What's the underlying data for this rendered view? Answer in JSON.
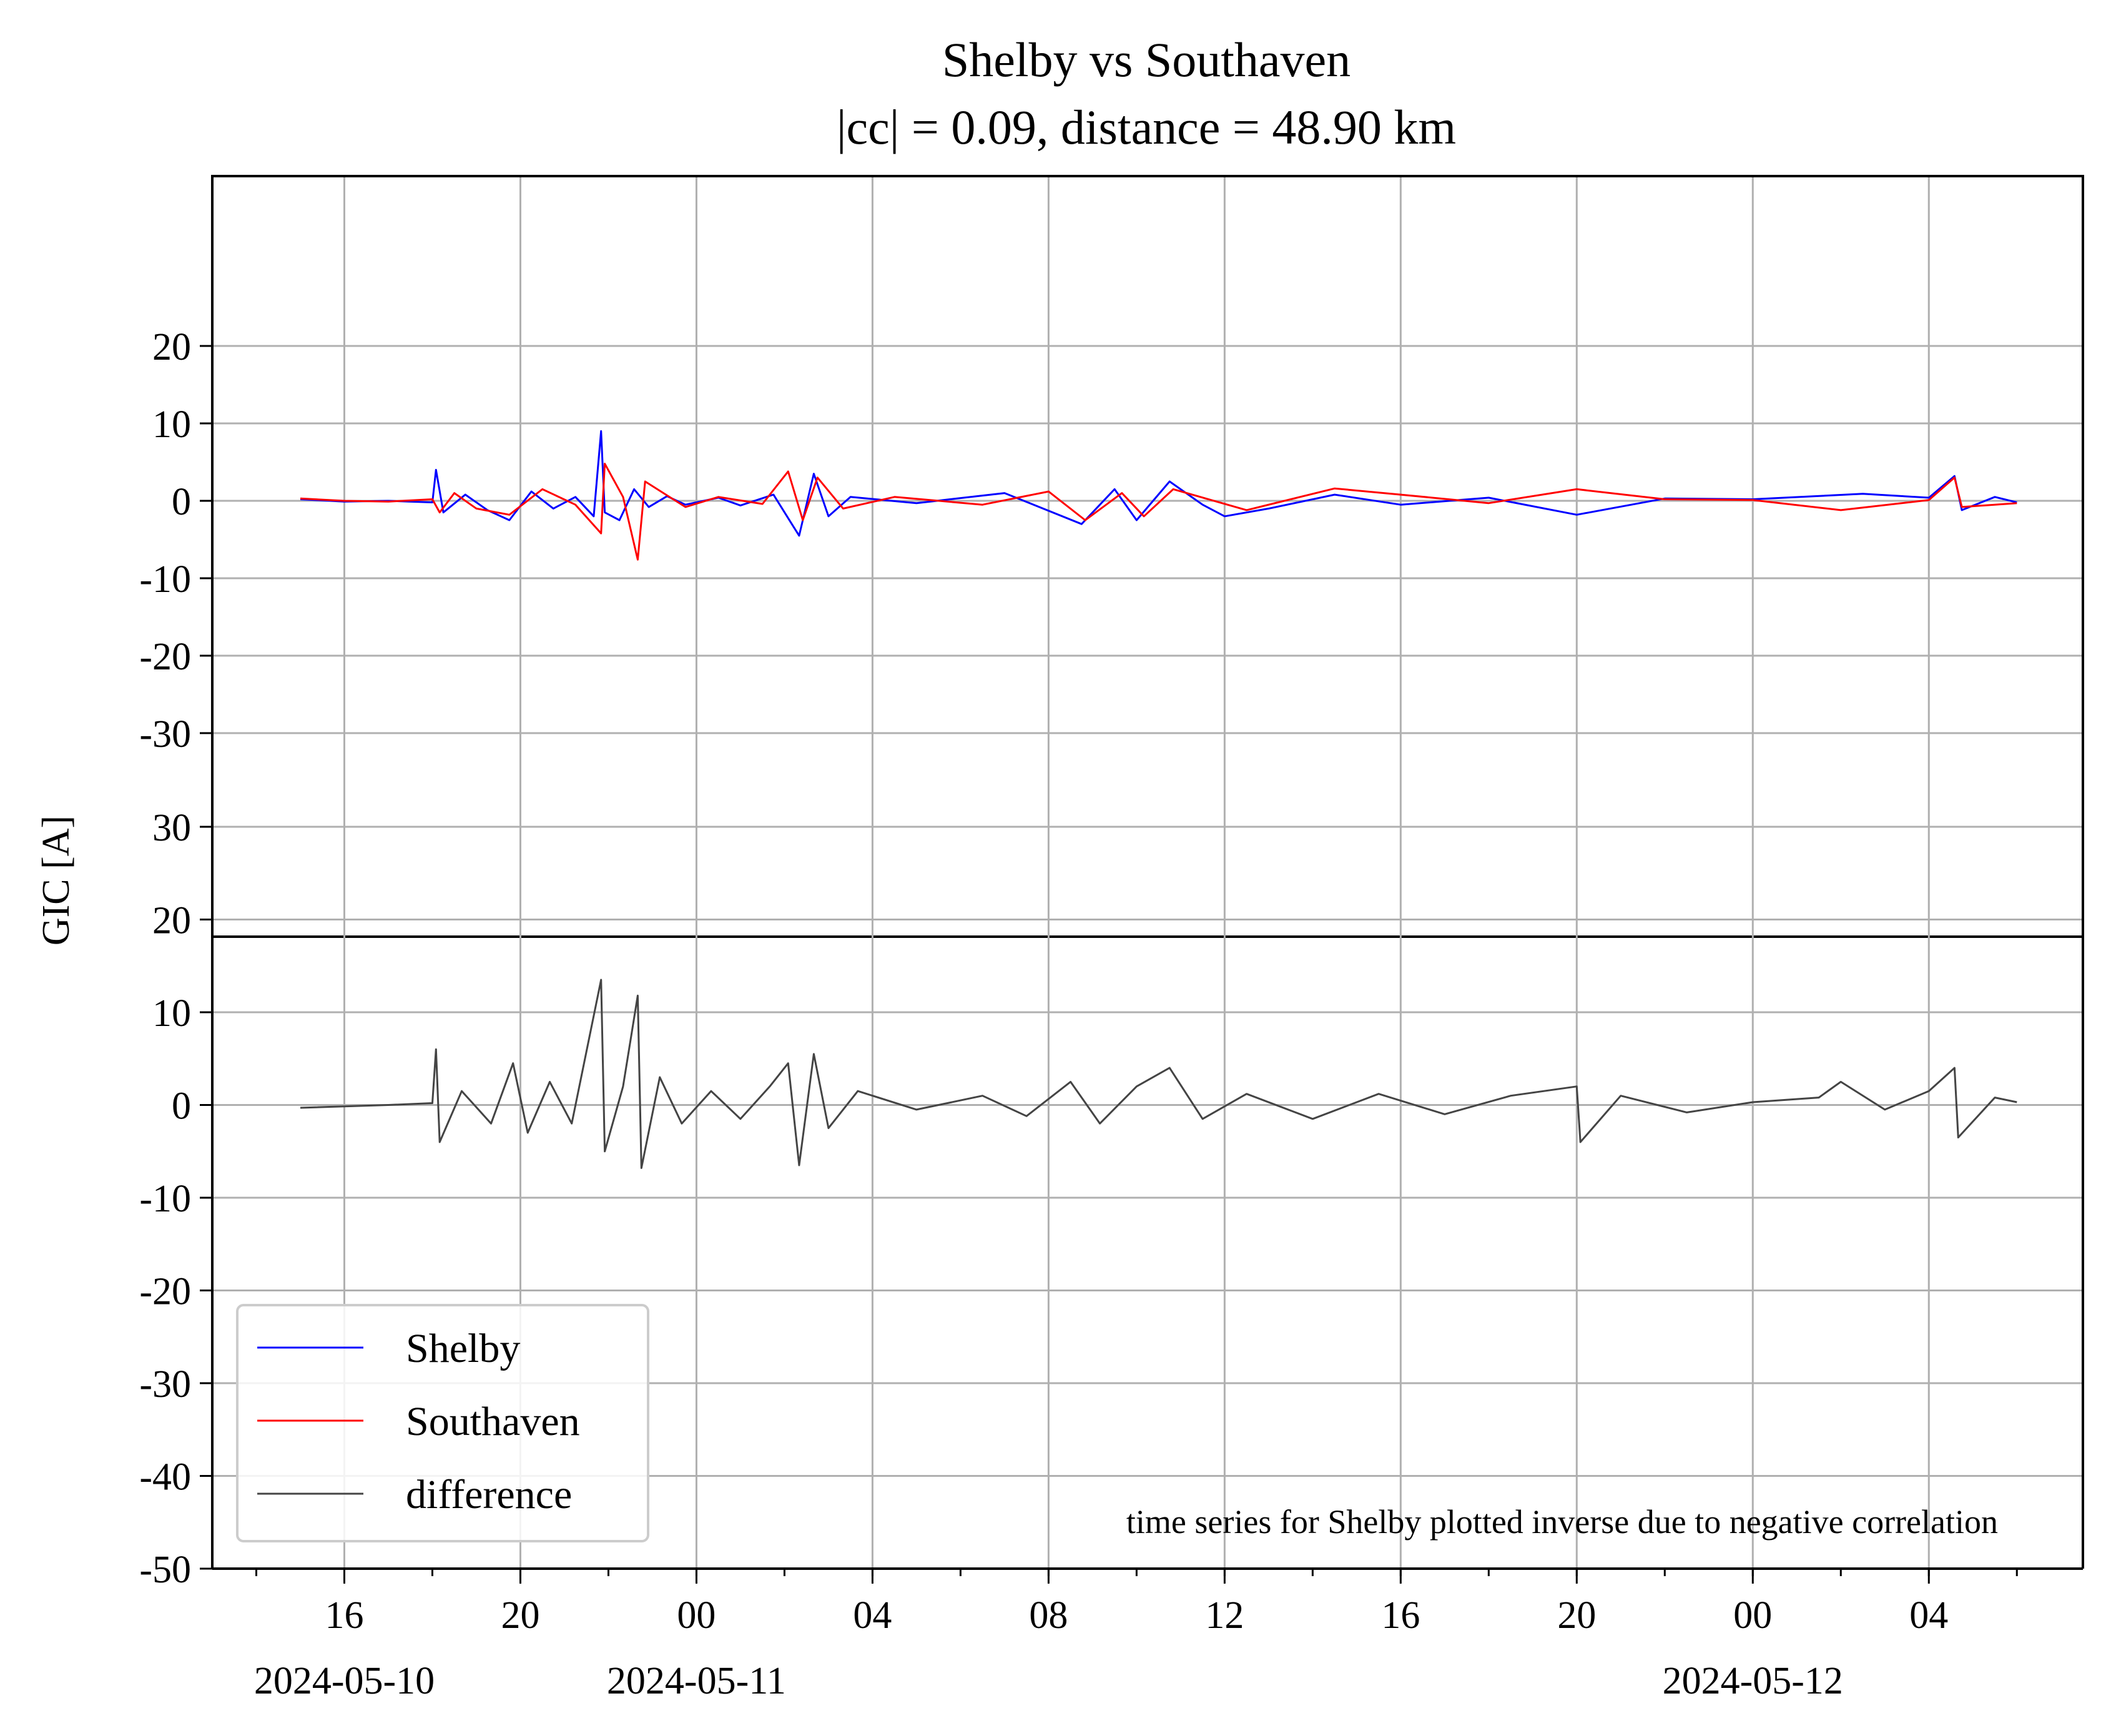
{
  "chart_data": {
    "type": "line",
    "title": "Shelby vs Southaven",
    "subtitle": "|cc| = 0.09, distance = 48.90 km",
    "ylabel": "GIC [A]",
    "note": "time series for Shelby plotted inverse due to negative correlation",
    "legend": {
      "position": "lower-left",
      "entries": [
        "Shelby",
        "Southaven",
        "difference"
      ]
    },
    "colors": {
      "Shelby": "#0000ff",
      "Southaven": "#ff0000",
      "difference": "#444444",
      "grid": "#b0b0b0"
    },
    "grid": true,
    "x_range": [
      "2024-05-10T13:00",
      "2024-05-12T07:30"
    ],
    "x_ticks": [
      {
        "t": "2024-05-10T16:00",
        "label": "16",
        "date": "2024-05-10"
      },
      {
        "t": "2024-05-10T20:00",
        "label": "20",
        "date": ""
      },
      {
        "t": "2024-05-11T00:00",
        "label": "00",
        "date": "2024-05-11"
      },
      {
        "t": "2024-05-11T04:00",
        "label": "04",
        "date": ""
      },
      {
        "t": "2024-05-11T08:00",
        "label": "08",
        "date": ""
      },
      {
        "t": "2024-05-11T12:00",
        "label": "12",
        "date": ""
      },
      {
        "t": "2024-05-11T16:00",
        "label": "16",
        "date": ""
      },
      {
        "t": "2024-05-11T20:00",
        "label": "20",
        "date": ""
      },
      {
        "t": "2024-05-12T00:00",
        "label": "00",
        "date": "2024-05-12"
      },
      {
        "t": "2024-05-12T04:00",
        "label": "04",
        "date": ""
      }
    ],
    "panels": [
      {
        "name": "top",
        "ylim": [
          -30,
          30
        ],
        "yticks": [
          20,
          10,
          0,
          -10,
          -20,
          -30
        ],
        "series": [
          {
            "name": "Shelby",
            "points": [
              [
                "2024-05-10T15:00",
                0.2
              ],
              [
                "2024-05-10T16:00",
                -0.1
              ],
              [
                "2024-05-10T17:00",
                0.0
              ],
              [
                "2024-05-10T18:00",
                -0.2
              ],
              [
                "2024-05-10T18:05",
                4.0
              ],
              [
                "2024-05-10T18:15",
                -1.5
              ],
              [
                "2024-05-10T18:45",
                0.8
              ],
              [
                "2024-05-10T19:15",
                -1.2
              ],
              [
                "2024-05-10T19:45",
                -2.5
              ],
              [
                "2024-05-10T20:15",
                1.2
              ],
              [
                "2024-05-10T20:45",
                -1.0
              ],
              [
                "2024-05-10T21:15",
                0.5
              ],
              [
                "2024-05-10T21:40",
                -2.0
              ],
              [
                "2024-05-10T21:50",
                9.0
              ],
              [
                "2024-05-10T21:55",
                -1.5
              ],
              [
                "2024-05-10T22:15",
                -2.5
              ],
              [
                "2024-05-10T22:35",
                1.5
              ],
              [
                "2024-05-10T22:55",
                -0.8
              ],
              [
                "2024-05-10T23:20",
                0.6
              ],
              [
                "2024-05-10T23:45",
                -0.5
              ],
              [
                "2024-05-11T00:30",
                0.4
              ],
              [
                "2024-05-11T01:00",
                -0.6
              ],
              [
                "2024-05-11T01:45",
                0.8
              ],
              [
                "2024-05-11T02:10",
                -3.0
              ],
              [
                "2024-05-11T02:20",
                -4.5
              ],
              [
                "2024-05-11T02:40",
                3.5
              ],
              [
                "2024-05-11T03:00",
                -2.0
              ],
              [
                "2024-05-11T03:30",
                0.5
              ],
              [
                "2024-05-11T05:00",
                -0.3
              ],
              [
                "2024-05-11T07:00",
                1.0
              ],
              [
                "2024-05-11T08:45",
                -3.0
              ],
              [
                "2024-05-11T09:30",
                1.5
              ],
              [
                "2024-05-11T10:00",
                -2.5
              ],
              [
                "2024-05-11T10:45",
                2.5
              ],
              [
                "2024-05-11T11:30",
                -0.5
              ],
              [
                "2024-05-11T12:00",
                -2.0
              ],
              [
                "2024-05-11T13:00",
                -1.0
              ],
              [
                "2024-05-11T14:30",
                0.8
              ],
              [
                "2024-05-11T16:00",
                -0.5
              ],
              [
                "2024-05-11T18:00",
                0.4
              ],
              [
                "2024-05-11T20:00",
                -1.8
              ],
              [
                "2024-05-11T22:00",
                0.3
              ],
              [
                "2024-05-12T00:00",
                0.2
              ],
              [
                "2024-05-12T02:30",
                0.9
              ],
              [
                "2024-05-12T04:00",
                0.4
              ],
              [
                "2024-05-12T04:35",
                3.2
              ],
              [
                "2024-05-12T04:45",
                -1.2
              ],
              [
                "2024-05-12T05:30",
                0.5
              ],
              [
                "2024-05-12T06:00",
                -0.2
              ]
            ]
          },
          {
            "name": "Southaven",
            "points": [
              [
                "2024-05-10T15:00",
                0.3
              ],
              [
                "2024-05-10T16:00",
                0.0
              ],
              [
                "2024-05-10T17:00",
                -0.1
              ],
              [
                "2024-05-10T18:00",
                0.2
              ],
              [
                "2024-05-10T18:10",
                -1.5
              ],
              [
                "2024-05-10T18:30",
                1.0
              ],
              [
                "2024-05-10T19:00",
                -1.0
              ],
              [
                "2024-05-10T19:45",
                -1.8
              ],
              [
                "2024-05-10T20:30",
                1.5
              ],
              [
                "2024-05-10T21:15",
                -0.5
              ],
              [
                "2024-05-10T21:50",
                -4.2
              ],
              [
                "2024-05-10T21:55",
                4.8
              ],
              [
                "2024-05-10T22:20",
                0.5
              ],
              [
                "2024-05-10T22:40",
                -7.6
              ],
              [
                "2024-05-10T22:50",
                2.5
              ],
              [
                "2024-05-10T23:15",
                1.0
              ],
              [
                "2024-05-10T23:45",
                -0.8
              ],
              [
                "2024-05-11T00:30",
                0.5
              ],
              [
                "2024-05-11T01:30",
                -0.4
              ],
              [
                "2024-05-11T02:05",
                3.8
              ],
              [
                "2024-05-11T02:25",
                -2.5
              ],
              [
                "2024-05-11T02:45",
                3.0
              ],
              [
                "2024-05-11T03:20",
                -1.0
              ],
              [
                "2024-05-11T04:30",
                0.5
              ],
              [
                "2024-05-11T06:30",
                -0.5
              ],
              [
                "2024-05-11T08:00",
                1.2
              ],
              [
                "2024-05-11T08:50",
                -2.5
              ],
              [
                "2024-05-11T09:40",
                1.0
              ],
              [
                "2024-05-11T10:10",
                -2.0
              ],
              [
                "2024-05-11T10:50",
                1.5
              ],
              [
                "2024-05-11T12:30",
                -1.2
              ],
              [
                "2024-05-11T14:30",
                1.6
              ],
              [
                "2024-05-11T16:00",
                0.8
              ],
              [
                "2024-05-11T18:00",
                -0.3
              ],
              [
                "2024-05-11T20:00",
                1.5
              ],
              [
                "2024-05-11T22:00",
                0.2
              ],
              [
                "2024-05-12T00:00",
                0.1
              ],
              [
                "2024-05-12T02:00",
                -1.2
              ],
              [
                "2024-05-12T04:00",
                0.1
              ],
              [
                "2024-05-12T04:35",
                3.0
              ],
              [
                "2024-05-12T04:45",
                -0.8
              ],
              [
                "2024-05-12T06:00",
                -0.3
              ]
            ]
          }
        ]
      },
      {
        "name": "bottom",
        "ylim": [
          -50,
          33
        ],
        "yticks": [
          30,
          20,
          10,
          0,
          -10,
          -20,
          -30,
          -40,
          -50
        ],
        "series": [
          {
            "name": "difference",
            "points": [
              [
                "2024-05-10T15:00",
                -0.3
              ],
              [
                "2024-05-10T17:00",
                0.0
              ],
              [
                "2024-05-10T18:00",
                0.2
              ],
              [
                "2024-05-10T18:05",
                6.0
              ],
              [
                "2024-05-10T18:10",
                -4.0
              ],
              [
                "2024-05-10T18:40",
                1.5
              ],
              [
                "2024-05-10T19:20",
                -2.0
              ],
              [
                "2024-05-10T19:50",
                4.5
              ],
              [
                "2024-05-10T20:10",
                -3.0
              ],
              [
                "2024-05-10T20:40",
                2.5
              ],
              [
                "2024-05-10T21:10",
                -2.0
              ],
              [
                "2024-05-10T21:50",
                13.5
              ],
              [
                "2024-05-10T21:55",
                -5.0
              ],
              [
                "2024-05-10T22:20",
                2.0
              ],
              [
                "2024-05-10T22:40",
                11.8
              ],
              [
                "2024-05-10T22:45",
                -6.8
              ],
              [
                "2024-05-10T23:10",
                3.0
              ],
              [
                "2024-05-10T23:40",
                -2.0
              ],
              [
                "2024-05-11T00:20",
                1.5
              ],
              [
                "2024-05-11T01:00",
                -1.5
              ],
              [
                "2024-05-11T01:40",
                2.0
              ],
              [
                "2024-05-11T02:05",
                4.5
              ],
              [
                "2024-05-11T02:20",
                -6.5
              ],
              [
                "2024-05-11T02:40",
                5.5
              ],
              [
                "2024-05-11T03:00",
                -2.5
              ],
              [
                "2024-05-11T03:40",
                1.5
              ],
              [
                "2024-05-11T05:00",
                -0.5
              ],
              [
                "2024-05-11T06:30",
                1.0
              ],
              [
                "2024-05-11T07:30",
                -1.2
              ],
              [
                "2024-05-11T08:30",
                2.5
              ],
              [
                "2024-05-11T09:10",
                -2.0
              ],
              [
                "2024-05-11T10:00",
                2.0
              ],
              [
                "2024-05-11T10:45",
                4.0
              ],
              [
                "2024-05-11T11:30",
                -1.5
              ],
              [
                "2024-05-11T12:30",
                1.2
              ],
              [
                "2024-05-11T14:00",
                -1.5
              ],
              [
                "2024-05-11T15:30",
                1.2
              ],
              [
                "2024-05-11T17:00",
                -1.0
              ],
              [
                "2024-05-11T18:30",
                1.0
              ],
              [
                "2024-05-11T20:00",
                2.0
              ],
              [
                "2024-05-11T20:05",
                -4.0
              ],
              [
                "2024-05-11T21:00",
                1.0
              ],
              [
                "2024-05-11T22:30",
                -0.8
              ],
              [
                "2024-05-12T00:00",
                0.3
              ],
              [
                "2024-05-12T01:30",
                0.8
              ],
              [
                "2024-05-12T02:00",
                2.5
              ],
              [
                "2024-05-12T03:00",
                -0.5
              ],
              [
                "2024-05-12T04:00",
                1.5
              ],
              [
                "2024-05-12T04:35",
                4.0
              ],
              [
                "2024-05-12T04:40",
                -3.5
              ],
              [
                "2024-05-12T05:30",
                0.8
              ],
              [
                "2024-05-12T06:00",
                0.3
              ]
            ]
          }
        ]
      }
    ]
  }
}
